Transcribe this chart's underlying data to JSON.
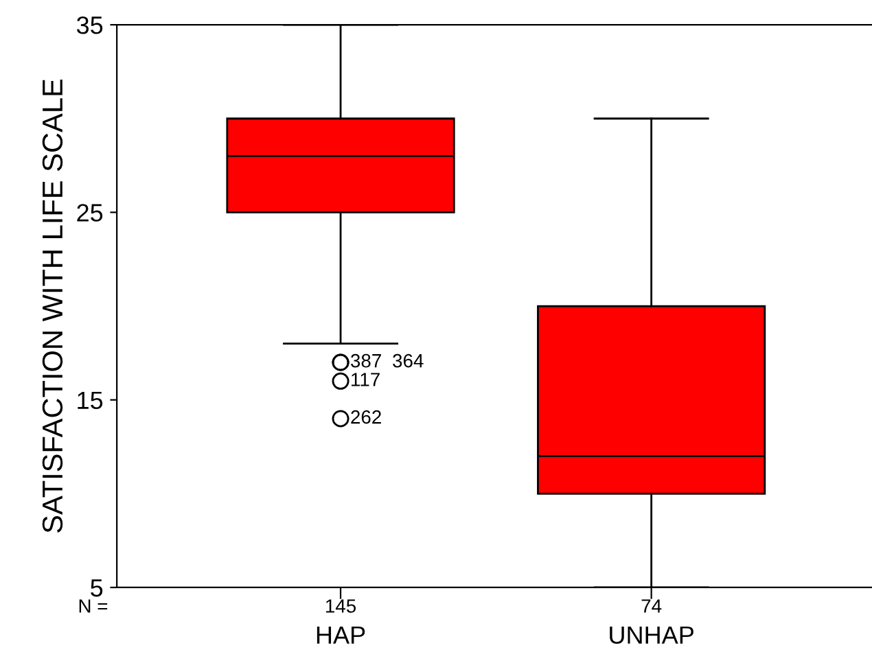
{
  "chart_data": {
    "type": "box",
    "ylabel": "SATISFACTION WITH LIFE SCALE",
    "categories": [
      "HAP",
      "UNHAP"
    ],
    "boxes": [
      {
        "low": 18,
        "q1": 25,
        "median": 28,
        "q3": 30,
        "high": 35,
        "outliers": [
          17,
          17,
          16,
          14
        ]
      },
      {
        "low": 5,
        "q1": 10,
        "median": 12,
        "q3": 20,
        "high": 30
      }
    ],
    "color": "#ff0000",
    "ylim": [
      5,
      35
    ],
    "yticks": [
      5,
      15,
      25,
      35
    ],
    "grid": false,
    "annotations": [
      "387",
      "364",
      "117",
      "262",
      "N =",
      "145",
      "74"
    ]
  }
}
